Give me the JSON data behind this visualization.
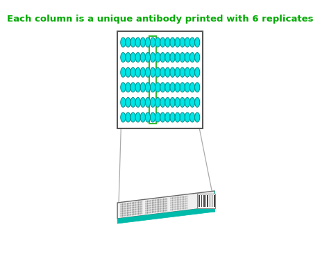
{
  "title": "Each column is a unique antibody printed with 6 replicates",
  "title_color": "#00aa00",
  "title_fontsize": 9.5,
  "bg_color": "#ffffff",
  "n_cols": 16,
  "n_rows": 6,
  "dot_color": "#00e5e5",
  "dot_edge_color": "#008888",
  "highlight_col": 6,
  "highlight_color": "#33bb33",
  "panel_bg": "#ffffff",
  "panel_edge": "#555555",
  "slide_teal": "#00bbaa",
  "slide_top": "#f0f0f0",
  "line_color": "#aaaaaa"
}
